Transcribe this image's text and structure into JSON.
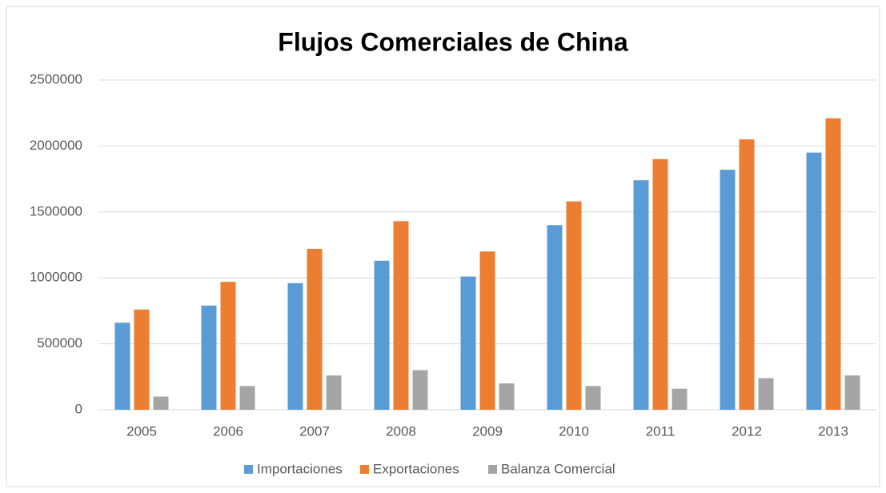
{
  "chart_data": {
    "type": "bar",
    "title": "Flujos Comerciales de China",
    "categories": [
      "2005",
      "2006",
      "2007",
      "2008",
      "2009",
      "2010",
      "2011",
      "2012",
      "2013"
    ],
    "series": [
      {
        "name": "Importaciones",
        "color": "#5b9bd5",
        "values": [
          660000,
          790000,
          960000,
          1130000,
          1010000,
          1400000,
          1740000,
          1820000,
          1950000
        ]
      },
      {
        "name": "Exportaciones",
        "color": "#ed7d31",
        "values": [
          760000,
          970000,
          1220000,
          1430000,
          1200000,
          1580000,
          1900000,
          2050000,
          2210000
        ]
      },
      {
        "name": "Balanza Comercial",
        "color": "#a5a5a5",
        "values": [
          100000,
          180000,
          260000,
          300000,
          200000,
          180000,
          160000,
          240000,
          260000
        ]
      }
    ],
    "ylim": [
      0,
      2500000
    ],
    "yticks": [
      0,
      500000,
      1000000,
      1500000,
      2000000,
      2500000
    ],
    "grid": true,
    "legend": "bottom"
  }
}
